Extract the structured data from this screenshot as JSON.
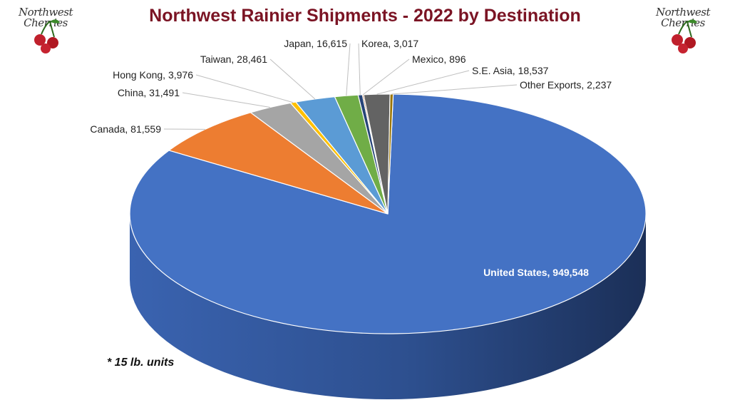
{
  "logo": {
    "line1": "Northwest",
    "line2": "Cherries"
  },
  "chart_data": {
    "type": "pie",
    "title": "Northwest Rainier Shipments - 2022 by Destination",
    "footnote": "* 15 lb. units",
    "slices": [
      {
        "label": "United States",
        "value": 949548,
        "display": "949,548",
        "color": "#4472c4"
      },
      {
        "label": "Canada",
        "value": 81559,
        "display": "81,559",
        "color": "#ed7d31"
      },
      {
        "label": "China",
        "value": 31491,
        "display": "31,491",
        "color": "#a5a5a5"
      },
      {
        "label": "Hong Kong",
        "value": 3976,
        "display": "3,976",
        "color": "#ffc000"
      },
      {
        "label": "Taiwan",
        "value": 28461,
        "display": "28,461",
        "color": "#5b9bd5"
      },
      {
        "label": "Japan",
        "value": 16615,
        "display": "16,615",
        "color": "#70ad47"
      },
      {
        "label": "Korea",
        "value": 3017,
        "display": "3,017",
        "color": "#264478"
      },
      {
        "label": "Mexico",
        "value": 896,
        "display": "896",
        "color": "#9e480e"
      },
      {
        "label": "S.E. Asia",
        "value": 18537,
        "display": "18,537",
        "color": "#636363"
      },
      {
        "label": "Other Exports",
        "value": 2237,
        "display": "2,237",
        "color": "#997300"
      }
    ]
  }
}
